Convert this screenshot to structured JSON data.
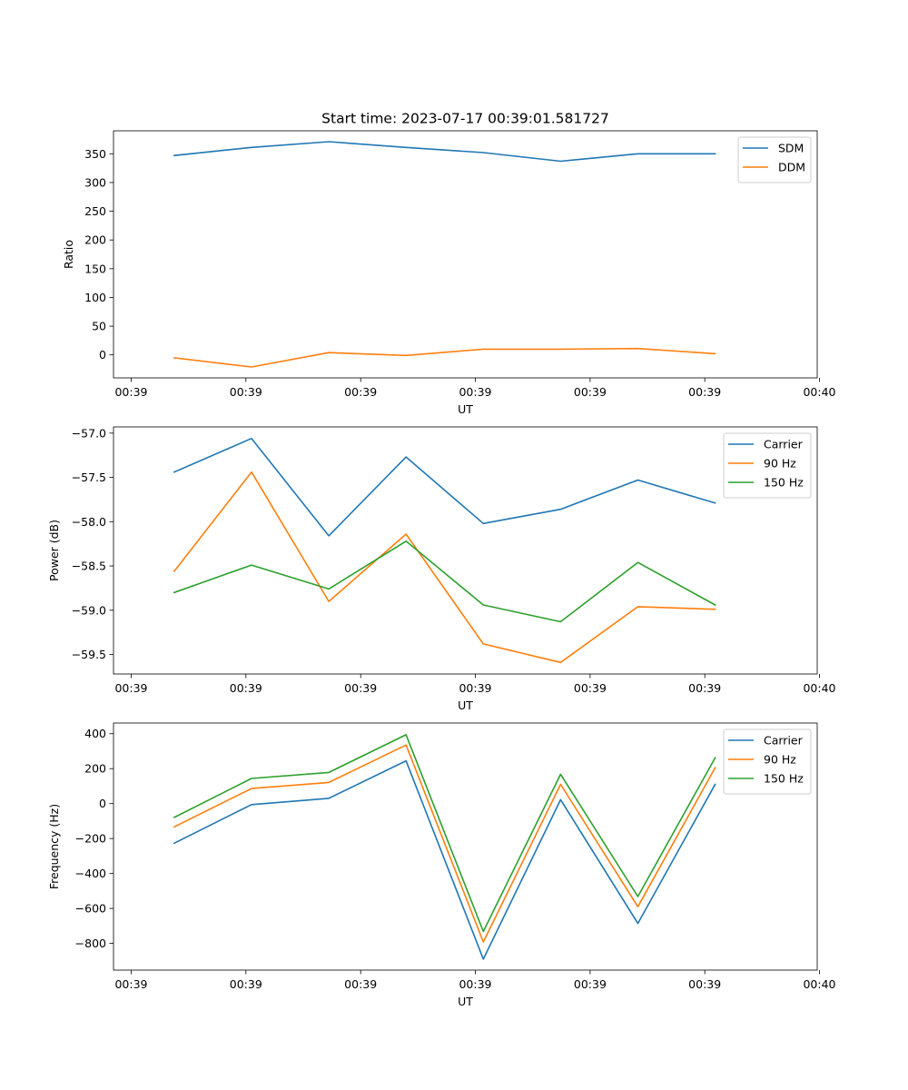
{
  "title": "Start time: 2023-07-17 00:39:01.581727",
  "x_tick_labels": [
    "00:39",
    "00:39",
    "00:39",
    "00:39",
    "00:39",
    "00:39",
    "00:39"
  ],
  "x_tick_last_label": "00:40",
  "colors": {
    "blue": "#1f77b4",
    "orange": "#ff7f0e",
    "green": "#2ca02c"
  },
  "chart_data": [
    {
      "type": "line",
      "title": "Start time: 2023-07-17 00:39:01.581727",
      "xlabel": "UT",
      "ylabel": "Ratio",
      "x": [
        1,
        2,
        3,
        4,
        5,
        6,
        7,
        8
      ],
      "xlim": [
        0.2143,
        9.3214
      ],
      "ylim": [
        -40,
        390
      ],
      "yticks": [
        0,
        50,
        100,
        150,
        200,
        250,
        300,
        350
      ],
      "ytick_labels": [
        "0",
        "50",
        "100",
        "150",
        "200",
        "250",
        "300",
        "350"
      ],
      "legend_position": "upper right",
      "series": [
        {
          "name": "SDM",
          "color": "#1f77b4",
          "values": [
            347,
            361,
            371,
            361,
            352,
            337,
            350,
            350
          ]
        },
        {
          "name": "DDM",
          "color": "#ff7f0e",
          "values": [
            -5,
            -21,
            4,
            -1,
            10,
            10,
            11,
            2
          ]
        }
      ]
    },
    {
      "type": "line",
      "xlabel": "UT",
      "ylabel": "Power (dB)",
      "x": [
        1,
        2,
        3,
        4,
        5,
        6,
        7,
        8
      ],
      "xlim": [
        0.2143,
        9.3214
      ],
      "ylim": [
        -59.72,
        -56.93
      ],
      "yticks": [
        -57.0,
        -57.5,
        -58.0,
        -58.5,
        -59.0,
        -59.5
      ],
      "ytick_labels": [
        "−57.0",
        "−57.5",
        "−58.0",
        "−58.5",
        "−59.0",
        "−59.5"
      ],
      "legend_position": "upper right",
      "series": [
        {
          "name": "Carrier",
          "color": "#1f77b4",
          "values": [
            -57.44,
            -57.06,
            -58.16,
            -57.27,
            -58.02,
            -57.86,
            -57.53,
            -57.79
          ]
        },
        {
          "name": "90 Hz",
          "color": "#ff7f0e",
          "values": [
            -58.56,
            -57.44,
            -58.9,
            -58.14,
            -59.38,
            -59.59,
            -58.96,
            -58.99
          ]
        },
        {
          "name": "150 Hz",
          "color": "#2ca02c",
          "values": [
            -58.8,
            -58.49,
            -58.76,
            -58.22,
            -58.94,
            -59.13,
            -58.46,
            -58.94
          ]
        }
      ]
    },
    {
      "type": "line",
      "xlabel": "UT",
      "ylabel": "Frequency (Hz)",
      "x": [
        1,
        2,
        3,
        4,
        5,
        6,
        7,
        8
      ],
      "xlim": [
        0.2143,
        9.3214
      ],
      "ylim": [
        -953,
        461
      ],
      "yticks": [
        400,
        200,
        0,
        -200,
        -400,
        -600,
        -800
      ],
      "ytick_labels": [
        "400",
        "200",
        "0",
        "−200",
        "−400",
        "−600",
        "−800"
      ],
      "legend_position": "upper right",
      "series": [
        {
          "name": "Carrier",
          "color": "#1f77b4",
          "values": [
            -227,
            -6,
            30,
            245,
            -890,
            22,
            -686,
            110
          ]
        },
        {
          "name": "90 Hz",
          "color": "#ff7f0e",
          "values": [
            -133,
            86,
            121,
            335,
            -792,
            110,
            -590,
            205
          ]
        },
        {
          "name": "150 Hz",
          "color": "#2ca02c",
          "values": [
            -79,
            144,
            178,
            394,
            -732,
            168,
            -532,
            262
          ]
        }
      ]
    }
  ]
}
